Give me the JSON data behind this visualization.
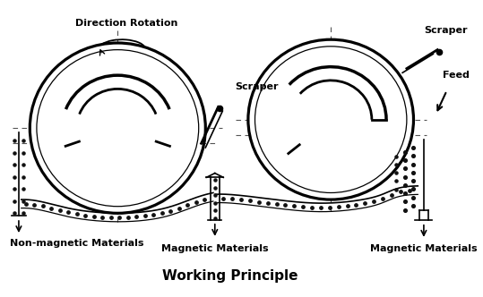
{
  "title": "Working Principle",
  "title_fontsize": 11,
  "title_fontweight": "bold",
  "bg_color": "#ffffff",
  "line_color": "#000000",
  "labels": {
    "direction_rotation": "Direction Rotation",
    "scraper_left": "Scraper",
    "scraper_right": "Scraper",
    "feed": "Feed",
    "non_magnetic": "Non-magnetic Materials",
    "magnetic_left": "Magnetic Materials",
    "magnetic_right": "Magnetic Materials"
  },
  "figw": 5.39,
  "figh": 3.32
}
